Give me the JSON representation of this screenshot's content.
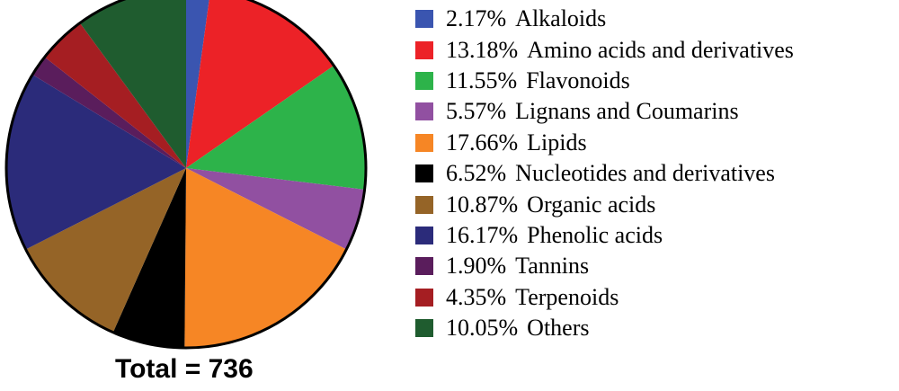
{
  "chart_data": {
    "type": "pie",
    "total_text": "Total = 736",
    "slices": [
      {
        "label": "Alkaloids",
        "percent_text": "2.17%",
        "value": 2.17,
        "color": "#3a55b0"
      },
      {
        "label": "Amino acids and derivatives",
        "percent_text": "13.18%",
        "value": 13.18,
        "color": "#ec2227"
      },
      {
        "label": "Flavonoids",
        "percent_text": "11.55%",
        "value": 11.55,
        "color": "#2db34a"
      },
      {
        "label": "Lignans and Coumarins",
        "percent_text": "5.57%",
        "value": 5.57,
        "color": "#9150a1"
      },
      {
        "label": "Lipids",
        "percent_text": "17.66%",
        "value": 17.66,
        "color": "#f68625"
      },
      {
        "label": "Nucleotides and derivatives",
        "percent_text": "6.52%",
        "value": 6.52,
        "color": "#000000"
      },
      {
        "label": "Organic acids",
        "percent_text": "10.87%",
        "value": 10.87,
        "color": "#956427"
      },
      {
        "label": "Phenolic acids",
        "percent_text": "16.17%",
        "value": 16.17,
        "color": "#2b2b7a"
      },
      {
        "label": "Tannins",
        "percent_text": "1.90%",
        "value": 1.9,
        "color": "#5a1d5c"
      },
      {
        "label": "Terpenoids",
        "percent_text": "4.35%",
        "value": 4.35,
        "color": "#a51e22"
      },
      {
        "label": "Others",
        "percent_text": "10.05%",
        "value": 10.05,
        "color": "#1f5c2f"
      }
    ],
    "legend_position": "right",
    "start_angle": "top",
    "direction": "clockwise"
  }
}
